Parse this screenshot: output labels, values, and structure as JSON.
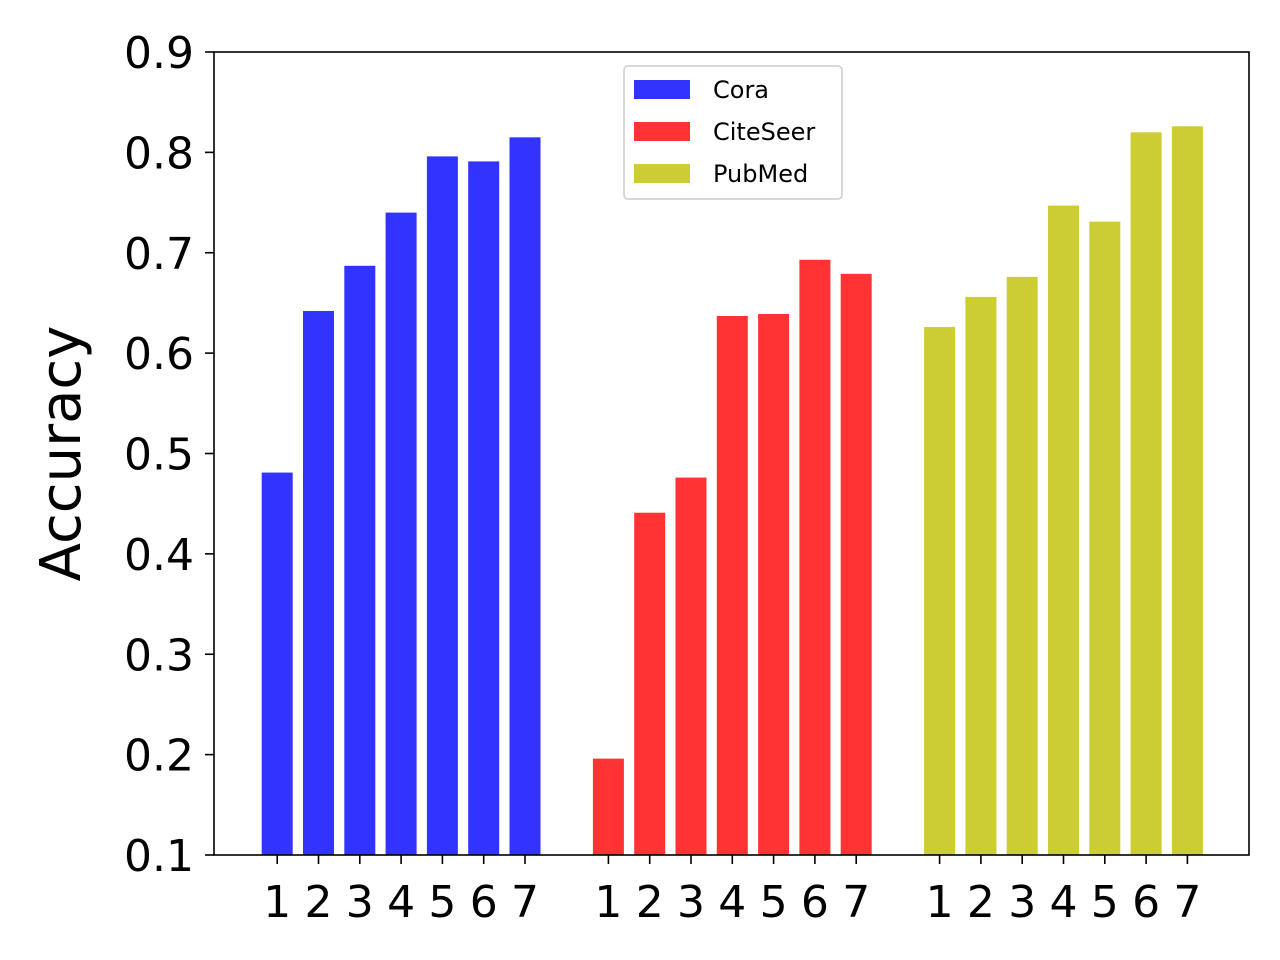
{
  "chart_data": {
    "type": "bar",
    "ylabel": "Accuracy",
    "ylim": [
      0.1,
      0.9
    ],
    "yticks": [
      0.1,
      0.2,
      0.3,
      0.4,
      0.5,
      0.6,
      0.7,
      0.8,
      0.9
    ],
    "ytick_labels": [
      "0.1",
      "0.2",
      "0.3",
      "0.4",
      "0.5",
      "0.6",
      "0.7",
      "0.8",
      "0.9"
    ],
    "categories": [
      "1",
      "2",
      "3",
      "4",
      "5",
      "6",
      "7"
    ],
    "grid": false,
    "legend_position": "top-center",
    "series": [
      {
        "name": "Cora",
        "color": "#3333ff",
        "values": [
          0.481,
          0.642,
          0.687,
          0.74,
          0.796,
          0.791,
          0.815
        ]
      },
      {
        "name": "CiteSeer",
        "color": "#ff3333",
        "values": [
          0.196,
          0.441,
          0.476,
          0.637,
          0.639,
          0.693,
          0.679
        ]
      },
      {
        "name": "PubMed",
        "color": "#cccc33",
        "values": [
          0.626,
          0.656,
          0.676,
          0.747,
          0.731,
          0.82,
          0.826
        ]
      }
    ]
  }
}
